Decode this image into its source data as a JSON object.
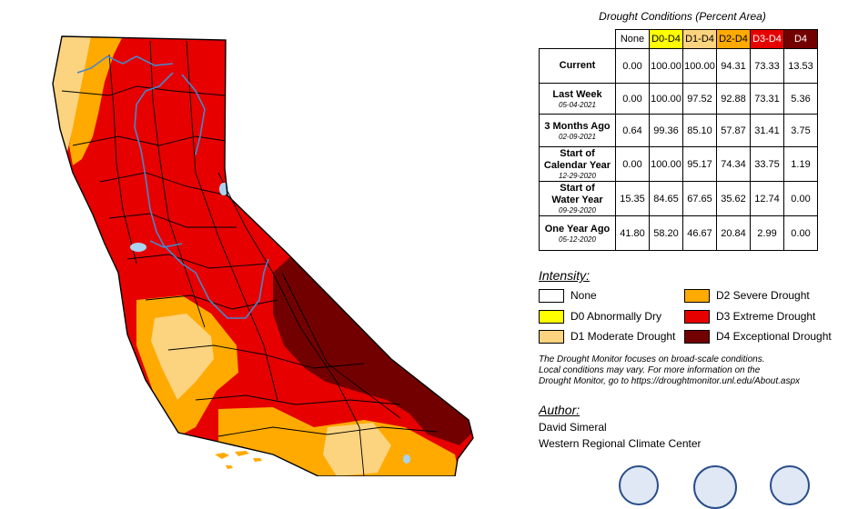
{
  "table": {
    "title": "Drought Conditions (Percent Area)",
    "columns": [
      {
        "label": "None",
        "color": "#ffffff",
        "text_color": "#000000"
      },
      {
        "label": "D0-D4",
        "color": "#ffff00",
        "text_color": "#000000"
      },
      {
        "label": "D1-D4",
        "color": "#fcd37f",
        "text_color": "#000000"
      },
      {
        "label": "D2-D4",
        "color": "#ffaa00",
        "text_color": "#000000"
      },
      {
        "label": "D3-D4",
        "color": "#e60000",
        "text_color": "#ffffff"
      },
      {
        "label": "D4",
        "color": "#730000",
        "text_color": "#ffffff"
      }
    ],
    "rows": [
      {
        "label_lines": [
          "Current"
        ],
        "date": "",
        "values": [
          "0.00",
          "100.00",
          "100.00",
          "94.31",
          "73.33",
          "13.53"
        ]
      },
      {
        "label_lines": [
          "Last Week"
        ],
        "date": "05-04-2021",
        "values": [
          "0.00",
          "100.00",
          "97.52",
          "92.88",
          "73.31",
          "5.36"
        ]
      },
      {
        "label_lines": [
          "3 Months Ago"
        ],
        "date": "02-09-2021",
        "values": [
          "0.64",
          "99.36",
          "85.10",
          "57.87",
          "31.41",
          "3.75"
        ]
      },
      {
        "label_lines": [
          "Start of",
          "Calendar Year"
        ],
        "date": "12-29-2020",
        "values": [
          "0.00",
          "100.00",
          "95.17",
          "74.34",
          "33.75",
          "1.19"
        ]
      },
      {
        "label_lines": [
          "Start of",
          "Water Year"
        ],
        "date": "09-29-2020",
        "values": [
          "15.35",
          "84.65",
          "67.65",
          "35.62",
          "12.74",
          "0.00"
        ]
      },
      {
        "label_lines": [
          "One Year Ago"
        ],
        "date": "05-12-2020",
        "values": [
          "41.80",
          "58.20",
          "46.67",
          "20.84",
          "2.99",
          "0.00"
        ]
      }
    ]
  },
  "legend": {
    "title": "Intensity:",
    "items": [
      {
        "label": "None",
        "color": "#ffffff"
      },
      {
        "label": "D0 Abnormally Dry",
        "color": "#ffff00"
      },
      {
        "label": "D1 Moderate Drought",
        "color": "#fcd37f"
      },
      {
        "label": "D2 Severe Drought",
        "color": "#ffaa00"
      },
      {
        "label": "D3 Extreme Drought",
        "color": "#e60000"
      },
      {
        "label": "D4 Exceptional Drought",
        "color": "#730000"
      }
    ]
  },
  "note": [
    "The Drought Monitor focuses on broad-scale conditions.",
    "Local conditions may vary. For more information on the",
    "Drought Monitor, go to https://droughtmonitor.unl.edu/About.aspx"
  ],
  "author": {
    "title": "Author:",
    "name": "David Simeral",
    "org": "Western Regional Climate Center"
  },
  "map_colors": {
    "d1": "#fcd37f",
    "d2": "#ffaa00",
    "d3": "#e60000",
    "d4": "#730000",
    "border": "#000000",
    "rivers": "#4a86c8",
    "water": "#a9d3f0"
  }
}
